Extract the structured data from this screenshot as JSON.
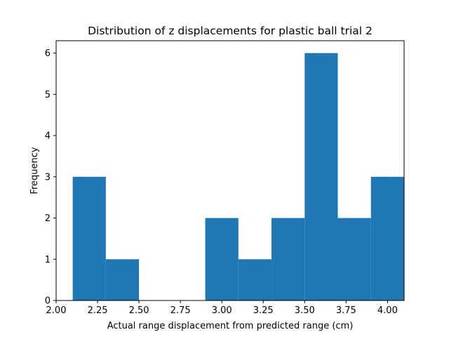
{
  "chart_data": {
    "type": "bar",
    "title": "Distribution of z displacements for plastic ball trial 2",
    "xlabel": "Actual range displacement from predicted range (cm)",
    "ylabel": "Frequency",
    "xlim": [
      2.0,
      4.1
    ],
    "ylim": [
      0,
      6.3
    ],
    "xticks": [
      2.0,
      2.25,
      2.5,
      2.75,
      3.0,
      3.25,
      3.5,
      3.75,
      4.0
    ],
    "xtick_labels": [
      "2.00",
      "2.25",
      "2.50",
      "2.75",
      "3.00",
      "3.25",
      "3.50",
      "3.75",
      "4.00"
    ],
    "yticks": [
      0,
      1,
      2,
      3,
      4,
      5,
      6
    ],
    "ytick_labels": [
      "0",
      "1",
      "2",
      "3",
      "4",
      "5",
      "6"
    ],
    "bins": [
      {
        "start": 2.1,
        "end": 2.3,
        "count": 3
      },
      {
        "start": 2.3,
        "end": 2.5,
        "count": 1
      },
      {
        "start": 2.5,
        "end": 2.7,
        "count": 0
      },
      {
        "start": 2.7,
        "end": 2.9,
        "count": 0
      },
      {
        "start": 2.9,
        "end": 3.1,
        "count": 2
      },
      {
        "start": 3.1,
        "end": 3.3,
        "count": 1
      },
      {
        "start": 3.3,
        "end": 3.5,
        "count": 2
      },
      {
        "start": 3.5,
        "end": 3.7,
        "count": 6
      },
      {
        "start": 3.7,
        "end": 3.9,
        "count": 2
      },
      {
        "start": 3.9,
        "end": 4.1,
        "count": 3
      }
    ],
    "bar_color": "#1f77b4",
    "grid": false,
    "legend": "none"
  }
}
